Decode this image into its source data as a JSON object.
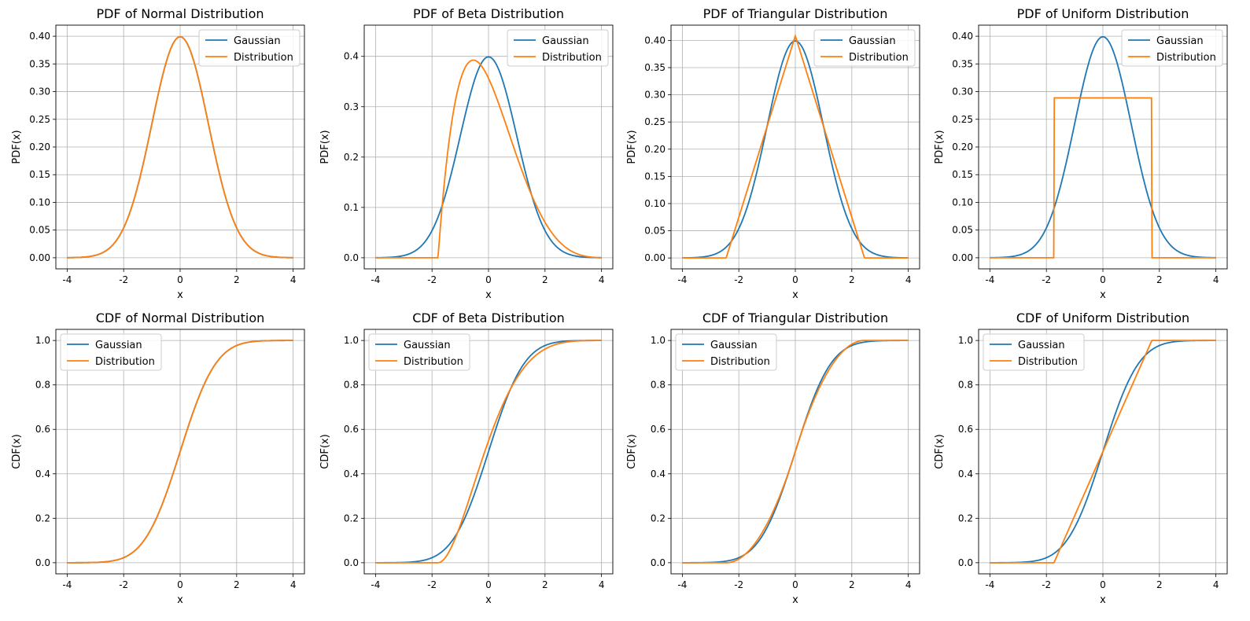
{
  "colors": {
    "gaussian": "#1f77b4",
    "distribution": "#ff7f0e",
    "grid": "#b0b0b0"
  },
  "chart_data": [
    {
      "type": "line",
      "title": "PDF of Normal Distribution",
      "xlabel": "x",
      "ylabel": "PDF(x)",
      "xlim": [
        -4,
        4
      ],
      "ylim": [
        -0.02,
        0.42
      ],
      "xticks": [
        "-4",
        "-2",
        "0",
        "2",
        "4"
      ],
      "yticks": [
        "0.00",
        "0.05",
        "0.10",
        "0.15",
        "0.20",
        "0.25",
        "0.30",
        "0.35",
        "0.40"
      ],
      "grid": true,
      "legend_position": "top-right",
      "series": [
        {
          "name": "Gaussian",
          "kind": "normal_pdf",
          "color": "#1f77b4"
        },
        {
          "name": "Distribution",
          "kind": "normal_pdf",
          "color": "#ff7f0e"
        }
      ]
    },
    {
      "type": "line",
      "title": "PDF of Beta Distribution",
      "xlabel": "x",
      "ylabel": "PDF(x)",
      "xlim": [
        -4,
        4
      ],
      "ylim": [
        -0.022,
        0.462
      ],
      "xticks": [
        "-4",
        "-2",
        "0",
        "2",
        "4"
      ],
      "yticks": [
        "0.0",
        "0.1",
        "0.2",
        "0.3",
        "0.4"
      ],
      "grid": true,
      "legend_position": "top-right",
      "series": [
        {
          "name": "Gaussian",
          "kind": "normal_pdf",
          "color": "#1f77b4"
        },
        {
          "name": "Distribution",
          "kind": "beta_pdf",
          "alpha": 2,
          "beta": 5,
          "color": "#ff7f0e"
        }
      ]
    },
    {
      "type": "line",
      "title": "PDF of Triangular Distribution",
      "xlabel": "x",
      "ylabel": "PDF(x)",
      "xlim": [
        -4,
        4
      ],
      "ylim": [
        -0.02,
        0.428
      ],
      "xticks": [
        "-4",
        "-2",
        "0",
        "2",
        "4"
      ],
      "yticks": [
        "0.00",
        "0.05",
        "0.10",
        "0.15",
        "0.20",
        "0.25",
        "0.30",
        "0.35",
        "0.40"
      ],
      "grid": true,
      "legend_position": "top-right",
      "series": [
        {
          "name": "Gaussian",
          "kind": "normal_pdf",
          "color": "#1f77b4"
        },
        {
          "name": "Distribution",
          "kind": "triangular_pdf",
          "half_width": 2.449,
          "color": "#ff7f0e"
        }
      ]
    },
    {
      "type": "line",
      "title": "PDF of Uniform Distribution",
      "xlabel": "x",
      "ylabel": "PDF(x)",
      "xlim": [
        -4,
        4
      ],
      "ylim": [
        -0.02,
        0.42
      ],
      "xticks": [
        "-4",
        "-2",
        "0",
        "2",
        "4"
      ],
      "yticks": [
        "0.00",
        "0.05",
        "0.10",
        "0.15",
        "0.20",
        "0.25",
        "0.30",
        "0.35",
        "0.40"
      ],
      "grid": true,
      "legend_position": "top-right",
      "series": [
        {
          "name": "Gaussian",
          "kind": "normal_pdf",
          "color": "#1f77b4"
        },
        {
          "name": "Distribution",
          "kind": "uniform_pdf",
          "half_width": 1.732,
          "color": "#ff7f0e"
        }
      ]
    },
    {
      "type": "line",
      "title": "CDF of Normal Distribution",
      "xlabel": "x",
      "ylabel": "CDF(x)",
      "xlim": [
        -4,
        4
      ],
      "ylim": [
        -0.05,
        1.05
      ],
      "xticks": [
        "-4",
        "-2",
        "0",
        "2",
        "4"
      ],
      "yticks": [
        "0.0",
        "0.2",
        "0.4",
        "0.6",
        "0.8",
        "1.0"
      ],
      "grid": true,
      "legend_position": "top-left",
      "series": [
        {
          "name": "Gaussian",
          "kind": "normal_cdf",
          "color": "#1f77b4"
        },
        {
          "name": "Distribution",
          "kind": "normal_cdf",
          "color": "#ff7f0e"
        }
      ]
    },
    {
      "type": "line",
      "title": "CDF of Beta Distribution",
      "xlabel": "x",
      "ylabel": "CDF(x)",
      "xlim": [
        -4,
        4
      ],
      "ylim": [
        -0.05,
        1.05
      ],
      "xticks": [
        "-4",
        "-2",
        "0",
        "2",
        "4"
      ],
      "yticks": [
        "0.0",
        "0.2",
        "0.4",
        "0.6",
        "0.8",
        "1.0"
      ],
      "grid": true,
      "legend_position": "top-left",
      "series": [
        {
          "name": "Gaussian",
          "kind": "normal_cdf",
          "color": "#1f77b4"
        },
        {
          "name": "Distribution",
          "kind": "beta_cdf",
          "alpha": 2,
          "beta": 5,
          "color": "#ff7f0e"
        }
      ]
    },
    {
      "type": "line",
      "title": "CDF of Triangular Distribution",
      "xlabel": "x",
      "ylabel": "CDF(x)",
      "xlim": [
        -4,
        4
      ],
      "ylim": [
        -0.05,
        1.05
      ],
      "xticks": [
        "-4",
        "-2",
        "0",
        "2",
        "4"
      ],
      "yticks": [
        "0.0",
        "0.2",
        "0.4",
        "0.6",
        "0.8",
        "1.0"
      ],
      "grid": true,
      "legend_position": "top-left",
      "series": [
        {
          "name": "Gaussian",
          "kind": "normal_cdf",
          "color": "#1f77b4"
        },
        {
          "name": "Distribution",
          "kind": "triangular_cdf",
          "half_width": 2.449,
          "color": "#ff7f0e"
        }
      ]
    },
    {
      "type": "line",
      "title": "CDF of Uniform Distribution",
      "xlabel": "x",
      "ylabel": "CDF(x)",
      "xlim": [
        -4,
        4
      ],
      "ylim": [
        -0.05,
        1.05
      ],
      "xticks": [
        "-4",
        "-2",
        "0",
        "2",
        "4"
      ],
      "yticks": [
        "0.0",
        "0.2",
        "0.4",
        "0.6",
        "0.8",
        "1.0"
      ],
      "grid": true,
      "legend_position": "top-left",
      "series": [
        {
          "name": "Gaussian",
          "kind": "normal_cdf",
          "color": "#1f77b4"
        },
        {
          "name": "Distribution",
          "kind": "uniform_cdf",
          "half_width": 1.732,
          "color": "#ff7f0e"
        }
      ]
    }
  ]
}
